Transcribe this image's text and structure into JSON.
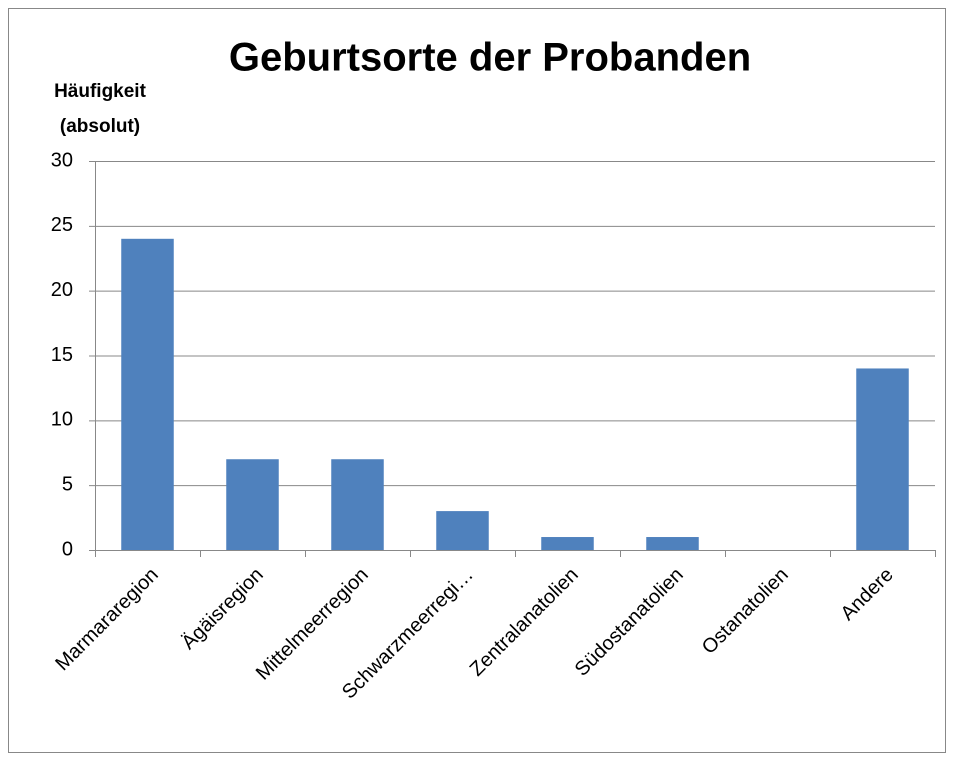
{
  "chart_data": {
    "type": "bar",
    "title": "Geburtsorte der Probanden",
    "y_label": [
      "Häufigkeit",
      "(absolut)"
    ],
    "categories": [
      "Marmararegion",
      "Ägäisregion",
      "Mittelmeerregion",
      "Schwarzmeerregi…",
      "Zentralanatolien",
      "Südostanatolien",
      "Ostanatolien",
      "Andere"
    ],
    "values": [
      24,
      7,
      7,
      3,
      1,
      1,
      0,
      14
    ],
    "color": "#4f81bd",
    "ylim": [
      0,
      30
    ],
    "yticks": [
      0,
      5,
      10,
      15,
      20,
      25,
      30
    ],
    "grid": true
  }
}
